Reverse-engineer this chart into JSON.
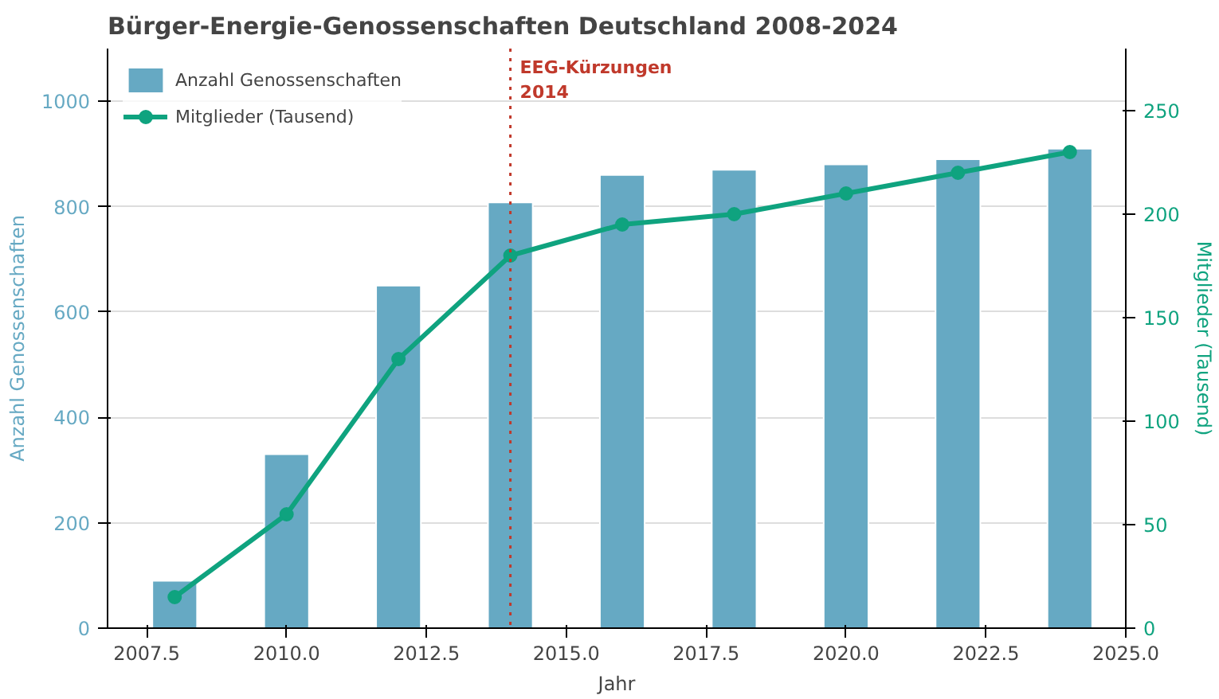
{
  "chart_data": {
    "type": "bar",
    "title": "Bürger-Energie-Genossenschaften Deutschland 2008-2024",
    "xlabel": "Jahr",
    "ylabel": "Anzahl Genossenschaften",
    "y2label": "Mitglieder (Tausend)",
    "x": [
      2008,
      2010,
      2012,
      2014,
      2016,
      2018,
      2020,
      2022,
      2024
    ],
    "series": [
      {
        "name": "Anzahl Genossenschaften",
        "color": "#66a9c3",
        "values": [
          90,
          330,
          650,
          808,
          860,
          870,
          880,
          890,
          910
        ]
      },
      {
        "name": "Mitglieder (Tausend)",
        "type": "line",
        "axis": "y2",
        "color": "#0fa37f",
        "marker": "circle",
        "values": [
          15,
          55,
          130,
          180,
          195,
          200,
          210,
          220,
          230
        ]
      }
    ],
    "xlim": [
      2006.8,
      2025.0
    ],
    "xticks": [
      {
        "value": 2007.5,
        "label": "2007.5"
      },
      {
        "value": 2010,
        "label": "2010.0"
      },
      {
        "value": 2012.5,
        "label": "2012.5"
      },
      {
        "value": 2015,
        "label": "2015.0"
      },
      {
        "value": 2017.5,
        "label": "2017.5"
      },
      {
        "value": 2020,
        "label": "2020.0"
      },
      {
        "value": 2022.5,
        "label": "2022.5"
      },
      {
        "value": 2025,
        "label": "2025.0"
      }
    ],
    "ylim": [
      0,
      1100
    ],
    "yticks": [
      0,
      200,
      400,
      600,
      800,
      1000
    ],
    "y2lim": [
      0,
      280
    ],
    "y2ticks": [
      0,
      50,
      100,
      150,
      200,
      250
    ],
    "ref_lines": [
      {
        "axis": "x",
        "value": 2014,
        "label": "EEG-Kürzungen\n2014",
        "color": "#c0392b",
        "line_style": "dotted"
      }
    ],
    "grid": "y",
    "legend": "top left"
  }
}
